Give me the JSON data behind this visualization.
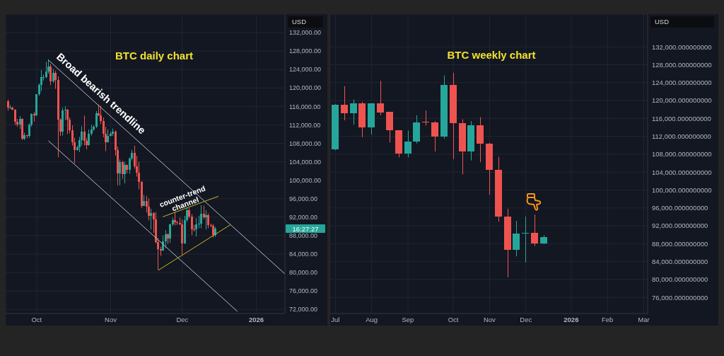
{
  "chart_data": [
    {
      "type": "candlestick",
      "title": "BTC daily chart",
      "ylabel": "USD",
      "x": [
        "2025-09-19",
        "2025-09-20",
        "2025-09-21",
        "2025-09-22",
        "2025-09-23",
        "2025-09-24",
        "2025-09-25",
        "2025-09-26",
        "2025-09-27",
        "2025-09-28",
        "2025-09-29",
        "2025-09-30",
        "2025-10-01",
        "2025-10-02",
        "2025-10-03",
        "2025-10-04",
        "2025-10-05",
        "2025-10-06",
        "2025-10-07",
        "2025-10-08",
        "2025-10-09",
        "2025-10-10",
        "2025-10-11",
        "2025-10-12",
        "2025-10-13",
        "2025-10-14",
        "2025-10-15",
        "2025-10-16",
        "2025-10-17",
        "2025-10-18",
        "2025-10-19",
        "2025-10-20",
        "2025-10-21",
        "2025-10-22",
        "2025-10-23",
        "2025-10-24",
        "2025-10-25",
        "2025-10-26",
        "2025-10-27",
        "2025-10-28",
        "2025-10-29",
        "2025-10-30",
        "2025-10-31",
        "2025-11-01",
        "2025-11-02",
        "2025-11-03",
        "2025-11-04",
        "2025-11-05",
        "2025-11-06",
        "2025-11-07",
        "2025-11-08",
        "2025-11-09",
        "2025-11-10",
        "2025-11-11",
        "2025-11-12",
        "2025-11-13",
        "2025-11-14",
        "2025-11-15",
        "2025-11-16",
        "2025-11-17",
        "2025-11-18",
        "2025-11-19",
        "2025-11-20",
        "2025-11-21",
        "2025-11-22",
        "2025-11-23",
        "2025-11-24",
        "2025-11-25",
        "2025-11-26",
        "2025-11-27",
        "2025-11-28",
        "2025-11-29",
        "2025-11-30",
        "2025-12-01",
        "2025-12-02",
        "2025-12-03",
        "2025-12-04",
        "2025-12-05",
        "2025-12-06",
        "2025-12-07",
        "2025-12-08",
        "2025-12-09",
        "2025-12-10",
        "2025-12-11",
        "2025-12-12",
        "2025-12-13",
        "2025-12-14",
        "2025-12-15"
      ],
      "ohlc": [
        [
          117100,
          117500,
          115100,
          115700
        ],
        [
          115700,
          116300,
          115500,
          115800
        ],
        [
          115800,
          115900,
          115200,
          115300
        ],
        [
          115300,
          115400,
          112000,
          112700
        ],
        [
          112700,
          113300,
          111600,
          112000
        ],
        [
          112000,
          113900,
          111100,
          113300
        ],
        [
          113300,
          113400,
          108700,
          109000
        ],
        [
          109000,
          110300,
          108700,
          109700
        ],
        [
          109700,
          109800,
          109100,
          109600
        ],
        [
          109600,
          112300,
          109200,
          112100
        ],
        [
          112100,
          114500,
          111600,
          114400
        ],
        [
          114400,
          114800,
          112700,
          114100
        ],
        [
          114100,
          118600,
          113900,
          118600
        ],
        [
          118600,
          121000,
          118300,
          120600
        ],
        [
          120600,
          123900,
          119300,
          122300
        ],
        [
          122300,
          122900,
          121600,
          122400
        ],
        [
          122400,
          125700,
          122100,
          123500
        ],
        [
          123500,
          126200,
          123100,
          124700
        ],
        [
          124700,
          125200,
          120600,
          121400
        ],
        [
          121400,
          124100,
          121100,
          123300
        ],
        [
          123300,
          123700,
          119800,
          121700
        ],
        [
          121700,
          122500,
          105000,
          113200
        ],
        [
          113200,
          113400,
          109600,
          110600
        ],
        [
          110600,
          115700,
          109700,
          115200
        ],
        [
          115200,
          116000,
          113000,
          115300
        ],
        [
          115300,
          115400,
          110000,
          113100
        ],
        [
          113100,
          113600,
          110200,
          110800
        ],
        [
          110800,
          111900,
          107500,
          108200
        ],
        [
          108200,
          109200,
          103700,
          106500
        ],
        [
          106500,
          107500,
          106400,
          107200
        ],
        [
          107200,
          109400,
          106100,
          108700
        ],
        [
          108700,
          111700,
          107500,
          110600
        ],
        [
          110600,
          114000,
          107500,
          108500
        ],
        [
          108500,
          109100,
          106700,
          107600
        ],
        [
          107600,
          111000,
          107500,
          110100
        ],
        [
          110100,
          112000,
          109700,
          111000
        ],
        [
          111000,
          111900,
          110700,
          111600
        ],
        [
          111600,
          115000,
          111300,
          114500
        ],
        [
          114500,
          116400,
          113900,
          114100
        ],
        [
          114100,
          116100,
          112200,
          112900
        ],
        [
          112900,
          113600,
          109300,
          110000
        ],
        [
          110000,
          111600,
          106300,
          108300
        ],
        [
          108300,
          111000,
          108300,
          109600
        ],
        [
          109600,
          110500,
          109500,
          110100
        ],
        [
          110100,
          111200,
          109600,
          110600
        ],
        [
          110600,
          110800,
          105300,
          106500
        ],
        [
          106500,
          107300,
          98900,
          101500
        ],
        [
          101500,
          104500,
          98900,
          103900
        ],
        [
          103900,
          104200,
          100300,
          101300
        ],
        [
          101300,
          104000,
          99300,
          103300
        ],
        [
          103300,
          103400,
          101500,
          102300
        ],
        [
          102300,
          105000,
          101400,
          104700
        ],
        [
          104700,
          106600,
          104300,
          105900
        ],
        [
          105900,
          107500,
          102500,
          103000
        ],
        [
          103000,
          105300,
          100800,
          101600
        ],
        [
          101600,
          104000,
          98000,
          99700
        ],
        [
          99700,
          99800,
          94000,
          94400
        ],
        [
          94400,
          96800,
          94400,
          95500
        ],
        [
          95500,
          96600,
          93000,
          94200
        ],
        [
          94200,
          96000,
          91300,
          92200
        ],
        [
          92200,
          93800,
          89300,
          92900
        ],
        [
          92900,
          93100,
          88600,
          91500
        ],
        [
          91500,
          93100,
          86300,
          86600
        ],
        [
          86600,
          87500,
          80600,
          85100
        ],
        [
          85100,
          85600,
          83600,
          84700
        ],
        [
          84700,
          88000,
          84700,
          86800
        ],
        [
          86800,
          89200,
          85300,
          88300
        ],
        [
          88300,
          88500,
          86200,
          87400
        ],
        [
          87400,
          90600,
          86400,
          90500
        ],
        [
          90500,
          91900,
          90100,
          91300
        ],
        [
          91300,
          93100,
          90200,
          90900
        ],
        [
          90900,
          91200,
          90300,
          90800
        ],
        [
          90800,
          91900,
          90300,
          90400
        ],
        [
          90400,
          91500,
          83900,
          86300
        ],
        [
          86300,
          92300,
          86200,
          91300
        ],
        [
          91300,
          94100,
          91000,
          93500
        ],
        [
          93500,
          94000,
          91800,
          92100
        ],
        [
          92100,
          92700,
          88100,
          89400
        ],
        [
          89400,
          90300,
          88900,
          89300
        ],
        [
          89300,
          91800,
          87800,
          90400
        ],
        [
          90400,
          92300,
          89600,
          90600
        ],
        [
          90600,
          94600,
          89600,
          92700
        ],
        [
          92700,
          94500,
          91600,
          92000
        ],
        [
          92000,
          93500,
          89300,
          92500
        ],
        [
          92500,
          92800,
          89600,
          90300
        ],
        [
          90300,
          90600,
          89800,
          90200
        ],
        [
          90200,
          90500,
          87600,
          88200
        ],
        [
          88200,
          89900,
          87700,
          89500
        ]
      ],
      "colors": [
        "#ef5350",
        "#26a69a",
        "#ef5350",
        "#ef5350",
        "#ef5350",
        "#26a69a",
        "#ef5350",
        "#26a69a",
        "#ef5350",
        "#26a69a",
        "#26a69a",
        "#ef5350",
        "#26a69a",
        "#26a69a",
        "#26a69a",
        "#26a69a",
        "#26a69a",
        "#26a69a",
        "#ef5350",
        "#26a69a",
        "#ef5350",
        "#ef5350",
        "#ef5350",
        "#26a69a",
        "#26a69a",
        "#ef5350",
        "#ef5350",
        "#ef5350",
        "#ef5350",
        "#26a69a",
        "#26a69a",
        "#26a69a",
        "#ef5350",
        "#ef5350",
        "#26a69a",
        "#26a69a",
        "#26a69a",
        "#26a69a",
        "#ef5350",
        "#ef5350",
        "#ef5350",
        "#ef5350",
        "#26a69a",
        "#26a69a",
        "#26a69a",
        "#ef5350",
        "#ef5350",
        "#26a69a",
        "#ef5350",
        "#26a69a",
        "#ef5350",
        "#26a69a",
        "#26a69a",
        "#ef5350",
        "#ef5350",
        "#ef5350",
        "#ef5350",
        "#26a69a",
        "#ef5350",
        "#ef5350",
        "#26a69a",
        "#ef5350",
        "#ef5350",
        "#ef5350",
        "#ef5350",
        "#26a69a",
        "#26a69a",
        "#ef5350",
        "#26a69a",
        "#26a69a",
        "#ef5350",
        "#ef5350",
        "#ef5350",
        "#ef5350",
        "#26a69a",
        "#26a69a",
        "#ef5350",
        "#ef5350",
        "#ef5350",
        "#26a69a",
        "#26a69a",
        "#26a69a",
        "#ef5350",
        "#26a69a",
        "#ef5350",
        "#ef5350",
        "#ef5350",
        "#26a69a"
      ],
      "xlim": [
        "2025-09-18",
        "2026-01-13"
      ],
      "xticks": [
        {
          "value": "2025-10-01",
          "label": "Oct"
        },
        {
          "value": "2025-11-01",
          "label": "Nov"
        },
        {
          "value": "2025-12-01",
          "label": "Dec"
        },
        {
          "value": "2026-01-01",
          "label": "2026"
        }
      ],
      "ylim": [
        71100,
        136000
      ],
      "yticks": [
        {
          "value": 72000,
          "label": "72,000.00"
        },
        {
          "value": 76000,
          "label": "76,000.00"
        },
        {
          "value": 80000,
          "label": "80,000.00"
        },
        {
          "value": 84000,
          "label": "84,000.00"
        },
        {
          "value": 88000,
          "label": "88,000.00"
        },
        {
          "value": 92000,
          "label": "92,000.00"
        },
        {
          "value": 96000,
          "label": "96,000.00"
        },
        {
          "value": 100000,
          "label": "100,000.00"
        },
        {
          "value": 104000,
          "label": "104,000.00"
        },
        {
          "value": 108000,
          "label": "108,000.00"
        },
        {
          "value": 112000,
          "label": "112,000.00"
        },
        {
          "value": 116000,
          "label": "116,000.00"
        },
        {
          "value": 120000,
          "label": "120,000.00"
        },
        {
          "value": 124000,
          "label": "124,000.00"
        },
        {
          "value": 128000,
          "label": "128,000.00"
        },
        {
          "value": 132000,
          "label": "132,000.00"
        }
      ],
      "grid": true,
      "series": [
        {
          "type": "line",
          "x": [
            "2025-10-06",
            "2026-01-13"
          ],
          "values": [
            126000,
            79700
          ],
          "color": "#b8bbc3"
        },
        {
          "type": "line",
          "x": [
            "2025-10-06",
            "2025-12-24"
          ],
          "values": [
            108500,
            71600
          ],
          "color": "#b8bbc3"
        },
        {
          "type": "line",
          "x": [
            "2025-11-23",
            "2025-12-16"
          ],
          "values": [
            92100,
            96500
          ],
          "color": "#c9b826"
        },
        {
          "type": "line",
          "x": [
            "2025-11-21",
            "2025-12-21"
          ],
          "values": [
            80500,
            90300
          ],
          "color": "#c9b826"
        }
      ],
      "annotations": [
        "Broad bearish trendline",
        "counter-trend\nchannel",
        "16:27:27"
      ]
    },
    {
      "type": "candlestick",
      "title": "BTC weekly chart",
      "ylabel": "USD",
      "x": [
        "2025-07-07",
        "2025-07-14",
        "2025-07-21",
        "2025-07-28",
        "2025-08-04",
        "2025-08-11",
        "2025-08-18",
        "2025-08-25",
        "2025-09-01",
        "2025-09-08",
        "2025-09-15",
        "2025-09-22",
        "2025-09-29",
        "2025-10-06",
        "2025-10-13",
        "2025-10-20",
        "2025-10-27",
        "2025-11-03",
        "2025-11-10",
        "2025-11-17",
        "2025-11-24",
        "2025-12-01",
        "2025-12-08",
        "2025-12-15"
      ],
      "ohlc": [
        [
          109100,
          119200,
          108900,
          119000
        ],
        [
          119000,
          123200,
          115600,
          117100
        ],
        [
          117100,
          120200,
          114600,
          119400
        ],
        [
          119400,
          119700,
          111800,
          114000
        ],
        [
          114000,
          119400,
          112400,
          119300
        ],
        [
          119300,
          124400,
          116700,
          117300
        ],
        [
          117400,
          117500,
          110600,
          113300
        ],
        [
          113300,
          113400,
          107300,
          108100
        ],
        [
          108100,
          113300,
          107300,
          110900
        ],
        [
          110900,
          116700,
          110400,
          115100
        ],
        [
          115200,
          117800,
          114400,
          115100
        ],
        [
          115100,
          115400,
          108600,
          112000
        ],
        [
          112000,
          125600,
          111500,
          123500
        ],
        [
          123500,
          126200,
          106900,
          114900
        ],
        [
          114900,
          115800,
          103500,
          108600
        ],
        [
          108600,
          115400,
          106600,
          114400
        ],
        [
          114400,
          116300,
          106200,
          110400
        ],
        [
          110400,
          110600,
          98900,
          104500
        ],
        [
          104500,
          107400,
          92900,
          94100
        ],
        [
          94100,
          95800,
          80500,
          86700
        ],
        [
          86700,
          93100,
          85200,
          90300
        ],
        [
          90300,
          94100,
          83800,
          90400
        ],
        [
          90400,
          94500,
          87500,
          88100
        ],
        [
          88100,
          89900,
          87900,
          89500
        ]
      ],
      "colors": [
        "#26a69a",
        "#ef5350",
        "#26a69a",
        "#ef5350",
        "#26a69a",
        "#ef5350",
        "#ef5350",
        "#ef5350",
        "#26a69a",
        "#26a69a",
        "#ef5350",
        "#ef5350",
        "#26a69a",
        "#ef5350",
        "#ef5350",
        "#26a69a",
        "#ef5350",
        "#ef5350",
        "#ef5350",
        "#ef5350",
        "#26a69a",
        "#26a69a",
        "#ef5350",
        "#26a69a"
      ],
      "xlim": [
        "2025-07-03",
        "2026-03-05"
      ],
      "xticks": [
        {
          "value": "2025-07-07",
          "label": "Jul"
        },
        {
          "value": "2025-08-04",
          "label": "Aug"
        },
        {
          "value": "2025-09-01",
          "label": "Sep"
        },
        {
          "value": "2025-10-06",
          "label": "Oct"
        },
        {
          "value": "2025-11-03",
          "label": "Nov"
        },
        {
          "value": "2025-12-01",
          "label": "Dec"
        },
        {
          "value": "2026-01-05",
          "label": "2026"
        },
        {
          "value": "2026-02-02",
          "label": "Feb"
        },
        {
          "value": "2026-03-02",
          "label": "Mar"
        }
      ],
      "ylim": [
        72400,
        139300
      ],
      "yticks": [
        {
          "value": 76000,
          "label": "76,000.000000000"
        },
        {
          "value": 80000,
          "label": "80,000.000000000"
        },
        {
          "value": 84000,
          "label": "84,000.000000000"
        },
        {
          "value": 88000,
          "label": "88,000.000000000"
        },
        {
          "value": 92000,
          "label": "92,000.000000000"
        },
        {
          "value": 96000,
          "label": "96,000.000000000"
        },
        {
          "value": 100000,
          "label": "100,000.000000000"
        },
        {
          "value": 104000,
          "label": "104,000.000000000"
        },
        {
          "value": 108000,
          "label": "108,000.000000000"
        },
        {
          "value": 112000,
          "label": "112,000.000000000"
        },
        {
          "value": 116000,
          "label": "116,000.000000000"
        },
        {
          "value": 120000,
          "label": "120,000.000000000"
        },
        {
          "value": 124000,
          "label": "124,000.000000000"
        },
        {
          "value": 128000,
          "label": "128,000.000000000"
        },
        {
          "value": 132000,
          "label": "132,000.000000000"
        }
      ],
      "grid": true
    }
  ]
}
